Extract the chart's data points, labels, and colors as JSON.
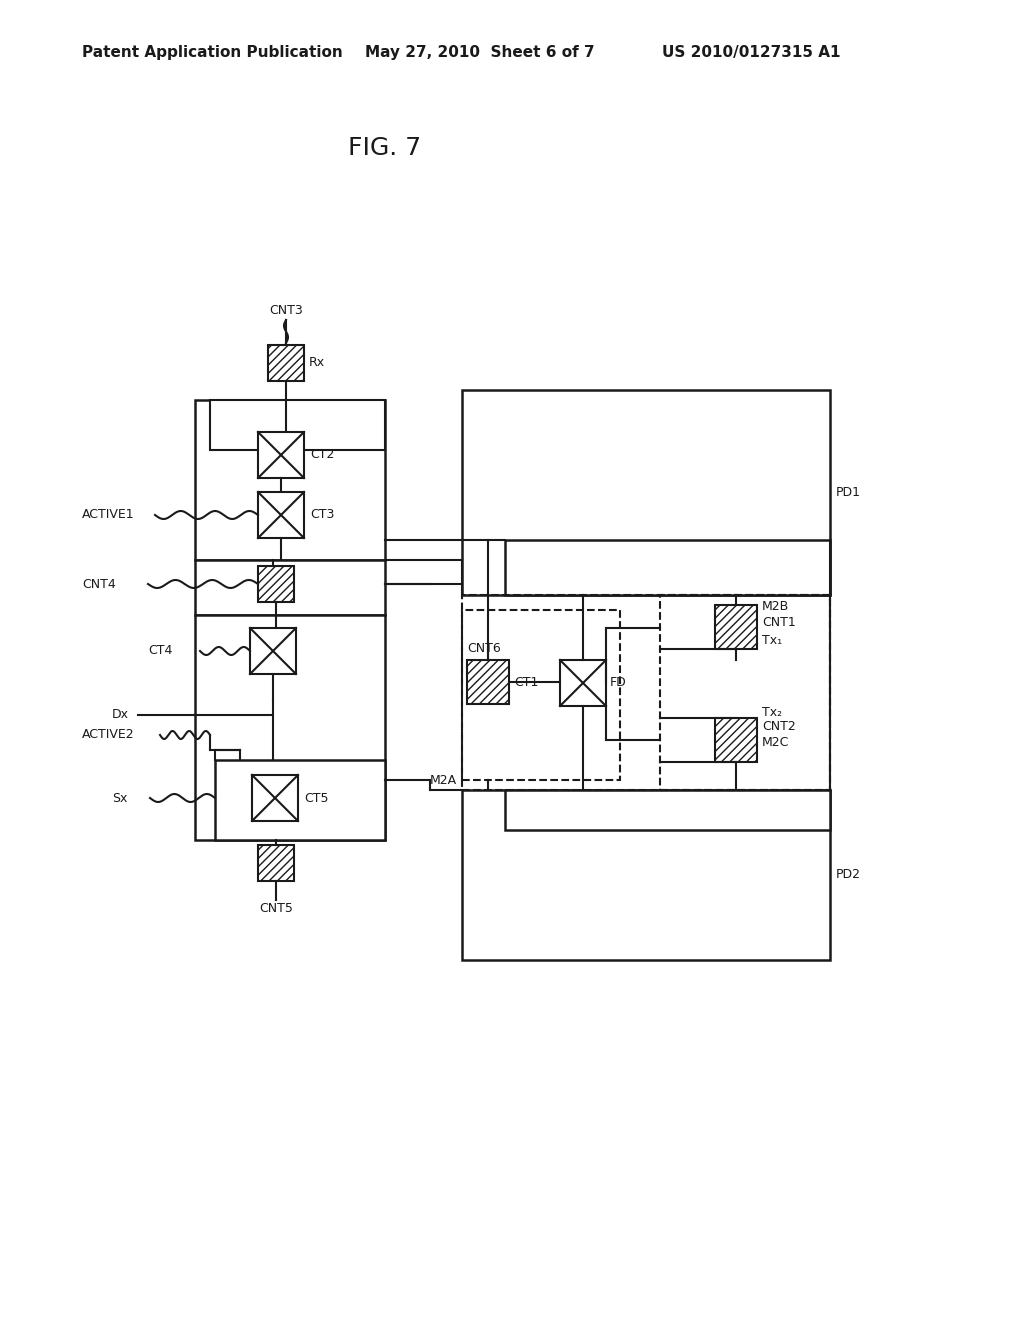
{
  "bg_color": "#ffffff",
  "line_color": "#1a1a1a",
  "header_left": "Patent Application Publication",
  "header_mid": "May 27, 2010  Sheet 6 of 7",
  "header_right": "US 2010/0127315 A1",
  "fig_title": "FIG. 7"
}
